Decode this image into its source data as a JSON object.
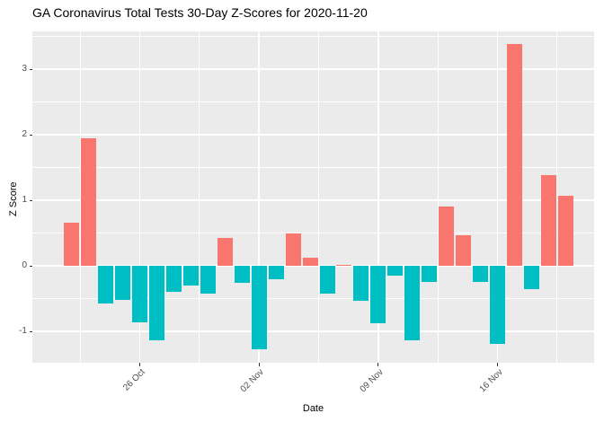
{
  "title": "GA Coronavirus Total Tests 30-Day Z-Scores for 2020-11-20",
  "chart_data": {
    "type": "bar",
    "title": "GA Coronavirus Total Tests 30-Day Z-Scores for 2020-11-20",
    "xlabel": "Date",
    "ylabel": "Z Score",
    "legend_position": "none",
    "grid": "on",
    "panel_bg": "#EBEBEB",
    "grid_color": "#FFFFFF",
    "positive_color": "#F8766D",
    "negative_color": "#00BFC4",
    "tick_text_color": "#4D4D4D",
    "title_text_color": "#000000",
    "ylim": [
      -1.48,
      3.58
    ],
    "yticks": [
      -1,
      0,
      1,
      2,
      3
    ],
    "ytick_labels": [
      "-1",
      "0",
      "1",
      "2",
      "3"
    ],
    "minor_yticks": [
      -0.5,
      0.5,
      1.5,
      2.5,
      3.5
    ],
    "xticks": [
      {
        "label": "26 Oct",
        "date": "2020-10-26"
      },
      {
        "label": "02 Nov",
        "date": "2020-11-02"
      },
      {
        "label": "09 Nov",
        "date": "2020-11-09"
      },
      {
        "label": "16 Nov",
        "date": "2020-11-16"
      }
    ],
    "minor_xtick_day_offsets": [
      0.5,
      7.5,
      14.5,
      21.5,
      28.5
    ],
    "x": [
      "2020-10-22",
      "2020-10-23",
      "2020-10-24",
      "2020-10-25",
      "2020-10-26",
      "2020-10-27",
      "2020-10-28",
      "2020-10-29",
      "2020-10-30",
      "2020-10-31",
      "2020-11-01",
      "2020-11-02",
      "2020-11-03",
      "2020-11-04",
      "2020-11-05",
      "2020-11-06",
      "2020-11-07",
      "2020-11-08",
      "2020-11-09",
      "2020-11-10",
      "2020-11-11",
      "2020-11-12",
      "2020-11-13",
      "2020-11-14",
      "2020-11-15",
      "2020-11-16",
      "2020-11-17",
      "2020-11-18",
      "2020-11-19",
      "2020-11-20"
    ],
    "values": [
      0.66,
      1.95,
      -0.58,
      -0.52,
      -0.86,
      -1.13,
      -0.39,
      -0.3,
      -0.42,
      0.42,
      -0.26,
      -1.28,
      -0.21,
      0.49,
      0.13,
      -0.43,
      0.02,
      -0.53,
      -0.88,
      -0.15,
      -1.13,
      -0.24,
      0.91,
      0.47,
      -0.24,
      -1.19,
      3.38,
      -0.35,
      1.39,
      1.07
    ]
  }
}
